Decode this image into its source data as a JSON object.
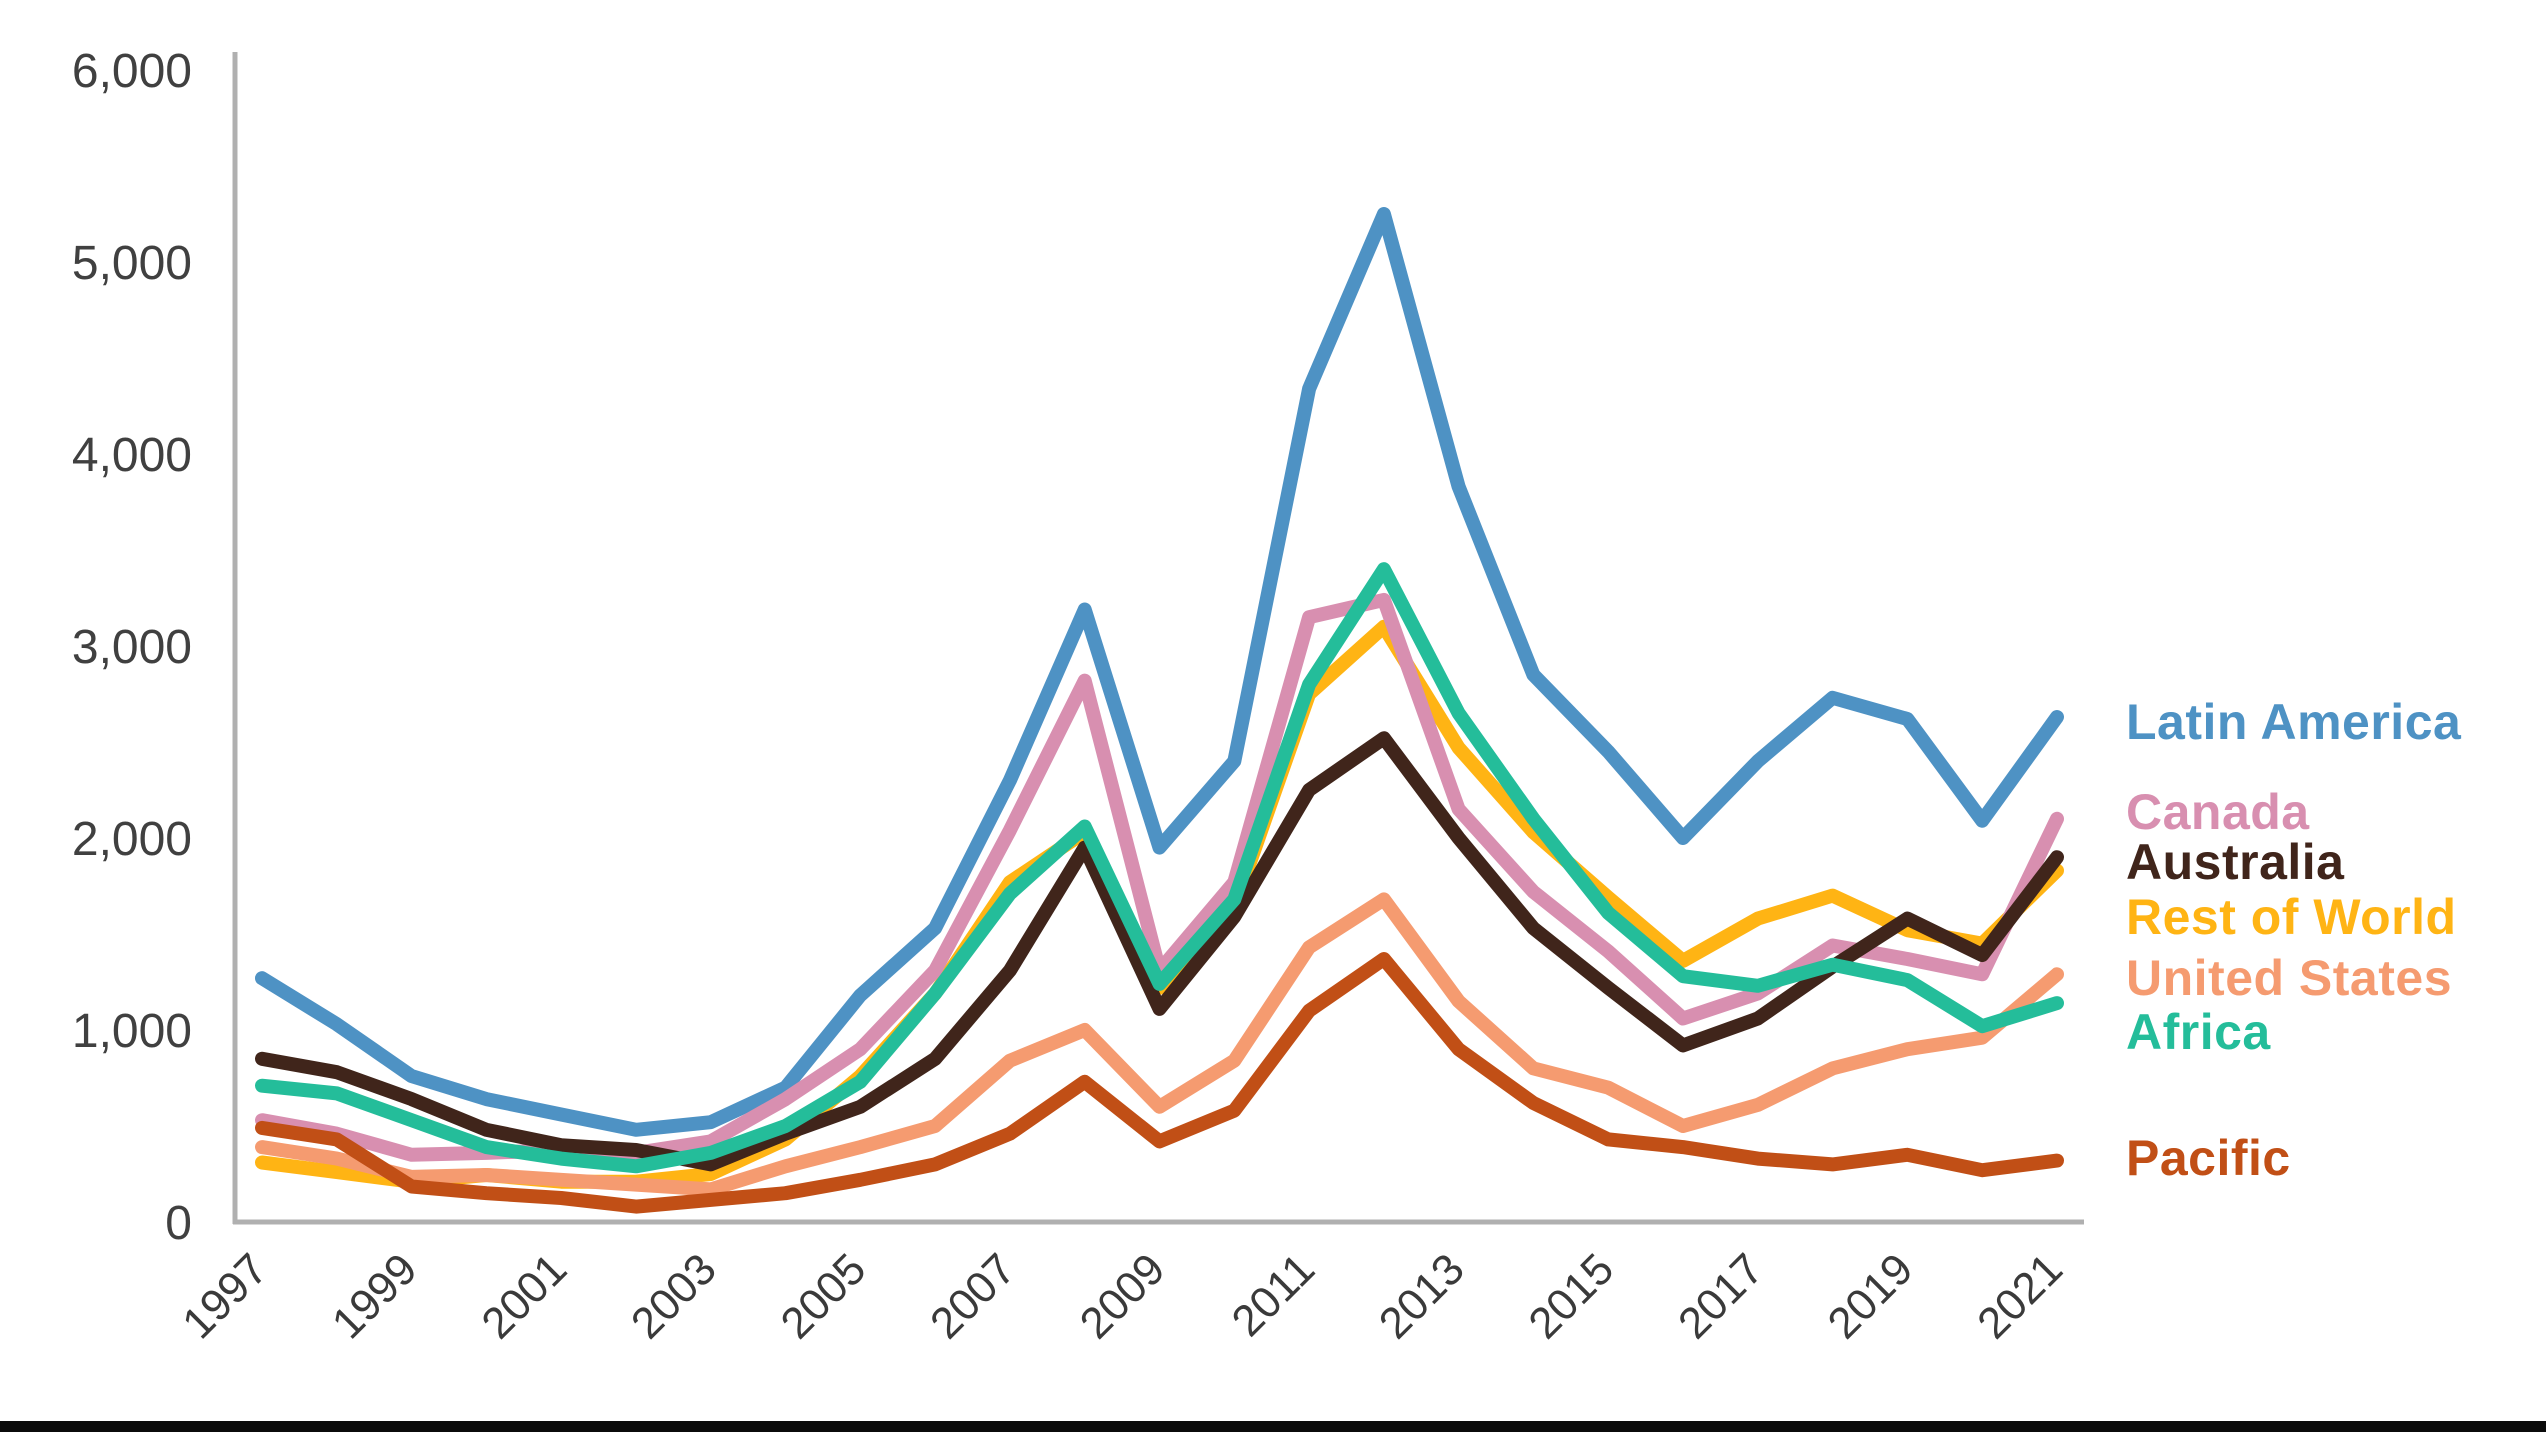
{
  "chart_data": {
    "type": "line",
    "title": "",
    "xlabel": "",
    "ylabel": "",
    "x": [
      1997,
      1998,
      1999,
      2000,
      2001,
      2002,
      2003,
      2004,
      2005,
      2006,
      2007,
      2008,
      2009,
      2010,
      2011,
      2012,
      2013,
      2014,
      2015,
      2016,
      2017,
      2018,
      2019,
      2020,
      2021
    ],
    "x_tick_labels": [
      "1997",
      "1999",
      "2001",
      "2003",
      "2005",
      "2007",
      "2009",
      "2011",
      "2013",
      "2015",
      "2017",
      "2019",
      "2021"
    ],
    "ylim": [
      0,
      6000
    ],
    "y_ticks": [
      0,
      1000,
      2000,
      3000,
      4000,
      5000,
      6000
    ],
    "y_tick_labels": [
      "0",
      "1,000",
      "2,000",
      "3,000",
      "4,000",
      "5,000",
      "6,000"
    ],
    "grid": false,
    "legend_position": "right",
    "axis_color": "#b0b0b0",
    "series": [
      {
        "name": "Latin America",
        "color": "#4E92C4",
        "values": [
          1270,
          1030,
          760,
          640,
          560,
          480,
          520,
          700,
          1180,
          1530,
          2300,
          3190,
          1950,
          2400,
          4340,
          5250,
          3830,
          2850,
          2450,
          2000,
          2400,
          2730,
          2620,
          2090,
          2630
        ]
      },
      {
        "name": "Canada",
        "color": "#D88FB0",
        "values": [
          530,
          460,
          350,
          360,
          375,
          360,
          420,
          640,
          900,
          1310,
          2040,
          2820,
          1310,
          1770,
          3150,
          3240,
          2150,
          1720,
          1410,
          1060,
          1190,
          1440,
          1370,
          1290,
          2100
        ]
      },
      {
        "name": "Australia",
        "color": "#40251B",
        "values": [
          850,
          780,
          640,
          480,
          400,
          375,
          300,
          460,
          600,
          850,
          1310,
          1950,
          1110,
          1590,
          2250,
          2520,
          2000,
          1530,
          1220,
          920,
          1060,
          1330,
          1580,
          1390,
          1900
        ]
      },
      {
        "name": "Rest of World",
        "color": "#FFB414",
        "values": [
          310,
          260,
          210,
          245,
          210,
          210,
          250,
          430,
          760,
          1190,
          1770,
          2030,
          1220,
          1640,
          2750,
          3100,
          2470,
          2030,
          1690,
          1360,
          1580,
          1700,
          1520,
          1450,
          1830
        ]
      },
      {
        "name": "United States",
        "color": "#F59B70",
        "values": [
          390,
          330,
          235,
          245,
          220,
          195,
          170,
          290,
          390,
          500,
          840,
          1000,
          600,
          840,
          1430,
          1680,
          1150,
          800,
          700,
          500,
          610,
          800,
          900,
          960,
          1290
        ]
      },
      {
        "name": "Africa",
        "color": "#24BD9A",
        "values": [
          710,
          670,
          530,
          390,
          330,
          290,
          360,
          500,
          730,
          1190,
          1710,
          2060,
          1240,
          1680,
          2800,
          3400,
          2650,
          2100,
          1610,
          1280,
          1230,
          1340,
          1260,
          1020,
          1140
        ]
      },
      {
        "name": "Pacific",
        "color": "#C14F16",
        "values": [
          490,
          430,
          185,
          150,
          125,
          80,
          115,
          150,
          220,
          300,
          460,
          730,
          420,
          580,
          1100,
          1370,
          900,
          620,
          430,
          390,
          330,
          300,
          350,
          270,
          320
        ]
      }
    ]
  }
}
